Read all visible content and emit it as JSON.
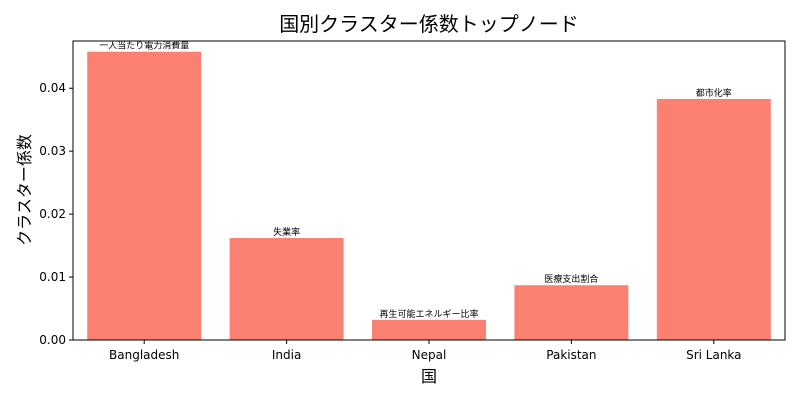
{
  "chart_data": {
    "type": "bar",
    "title": "国別クラスター係数トップノード",
    "xlabel": "国",
    "ylabel": "クラスター係数",
    "categories": [
      "Bangladesh",
      "India",
      "Nepal",
      "Pakistan",
      "Sri Lanka"
    ],
    "values": [
      0.0458,
      0.0162,
      0.0032,
      0.0087,
      0.0383
    ],
    "bar_labels": [
      "一人当たり電力消費量",
      "失業率",
      "再生可能エネルギー比率",
      "医療支出割合",
      "都市化率"
    ],
    "bar_color": "#fa8072",
    "ylim": [
      0,
      0.0475
    ],
    "yticks": [
      0.0,
      0.01,
      0.02,
      0.03,
      0.04
    ],
    "ytick_labels": [
      "0.00",
      "0.01",
      "0.02",
      "0.03",
      "0.04"
    ],
    "grid": false,
    "legend": "none"
  }
}
